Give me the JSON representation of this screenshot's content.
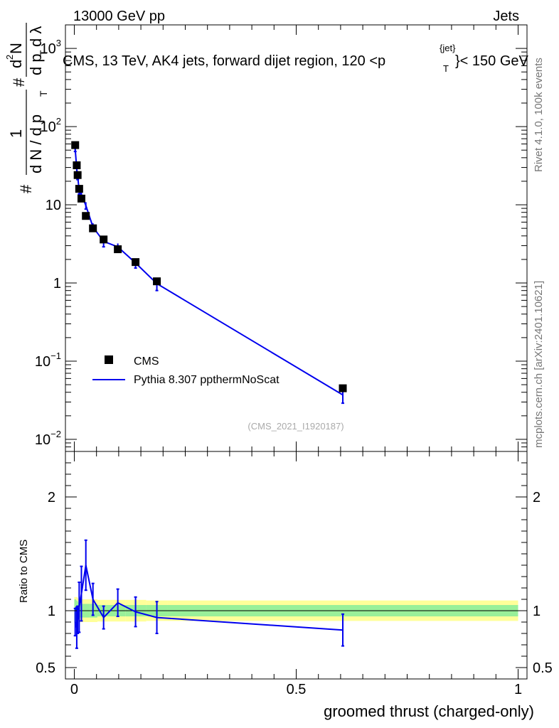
{
  "header": {
    "energy": "13000 GeV pp",
    "category": "Jets"
  },
  "side": {
    "rivet": "Rivet 4.1.0,  100k events",
    "mcplots": "mcplots.cern.ch [arXiv:2401.10621]"
  },
  "colors": {
    "pythia": "#0000ee",
    "band_inner": "#99f099",
    "band_outer": "#ffff99",
    "marker": "#000000"
  },
  "chart_data": [
    {
      "type": "scatter",
      "scale": "log",
      "title": "CMS, 13 TeV, AK4 jets, forward dijet region, 120 <p",
      "title_sup": "{jet}",
      "title_sub": "T",
      "title_end": "}< 150 GeV",
      "ylabel": "# 1/(dN/dp_T) # d²N/(dp_T dλ)",
      "ylabel_parts": {
        "hash": "#",
        "one": "1",
        "dN": "d N / d p",
        "T": "T",
        "d2N": "d",
        "two": "2",
        "N": "N",
        "dpT": "d p",
        "dlambda": "d λ"
      },
      "ylim": [
        0.007,
        2000
      ],
      "yticks": [
        {
          "v": 1000,
          "base": "10",
          "exp": "3"
        },
        {
          "v": 100,
          "base": "10",
          "exp": "2"
        },
        {
          "v": 10,
          "base": "10",
          "exp": ""
        },
        {
          "v": 1,
          "base": "1",
          "exp": ""
        },
        {
          "v": 0.1,
          "base": "10",
          "exp": "−1"
        },
        {
          "v": 0.01,
          "base": "10",
          "exp": "−2"
        }
      ],
      "legend": [
        "CMS",
        "Pythia 8.307 ppthermNoScat"
      ],
      "watermark": "(CMS_2021_I1920187)",
      "series": [
        {
          "name": "CMS",
          "x": [
            0.002,
            0.0055,
            0.0075,
            0.011,
            0.016,
            0.026,
            0.042,
            0.066,
            0.098,
            0.138,
            0.186,
            0.605
          ],
          "y": [
            58,
            32,
            24,
            16,
            12,
            7.2,
            5.0,
            3.6,
            2.7,
            1.85,
            1.05,
            0.045
          ],
          "yerr": [
            3,
            2,
            1.5,
            1.2,
            0.8,
            0.4,
            0.3,
            0.2,
            0.15,
            0.12,
            0.06,
            0.004
          ]
        },
        {
          "name": "Pythia 8.307 ppthermNoScat",
          "x": [
            0.002,
            0.0055,
            0.0075,
            0.011,
            0.016,
            0.026,
            0.042,
            0.066,
            0.098,
            0.138,
            0.186,
            0.605
          ],
          "y": [
            52,
            29,
            23,
            15.5,
            13.5,
            9.8,
            5.2,
            3.4,
            2.9,
            1.8,
            0.98,
            0.037
          ],
          "yerr": [
            4,
            3,
            2,
            1.8,
            1.4,
            1.0,
            0.6,
            0.5,
            0.3,
            0.25,
            0.18,
            0.008
          ]
        }
      ]
    },
    {
      "type": "line",
      "ylabel": "Ratio to CMS",
      "xlabel": "groomed thrust (charged-only)",
      "xlim": [
        -0.02,
        1.02
      ],
      "ylim": [
        0.4,
        2.4
      ],
      "xticks": [
        {
          "v": 0,
          "label": "0"
        },
        {
          "v": 0.5,
          "label": "0.5"
        },
        {
          "v": 1,
          "label": "1"
        }
      ],
      "yticks": [
        {
          "v": 0.5,
          "label": "0.5"
        },
        {
          "v": 1,
          "label": "1"
        },
        {
          "v": 2,
          "label": "2"
        }
      ],
      "bands": {
        "edges": [
          0,
          0.004,
          0.007,
          0.009,
          0.013,
          0.02,
          0.033,
          0.052,
          0.081,
          0.116,
          0.162,
          0.21,
          1.0
        ],
        "inner": [
          0.1,
          0.09,
          0.08,
          0.07,
          0.06,
          0.06,
          0.06,
          0.05,
          0.05,
          0.05,
          0.05,
          0.05
        ],
        "outer": [
          0.12,
          0.12,
          0.11,
          0.1,
          0.1,
          0.1,
          0.1,
          0.095,
          0.095,
          0.095,
          0.09,
          0.09
        ]
      },
      "series": [
        {
          "name": "Pythia 8.307 ppthermNoScat",
          "x": [
            0.002,
            0.0055,
            0.0075,
            0.011,
            0.016,
            0.026,
            0.042,
            0.066,
            0.098,
            0.138,
            0.186,
            0.605
          ],
          "y": [
            0.9,
            0.85,
            0.92,
            1.03,
            1.15,
            1.4,
            1.1,
            0.94,
            1.07,
            0.99,
            0.94,
            0.83
          ],
          "yerr": [
            0.12,
            0.18,
            0.12,
            0.22,
            0.24,
            0.22,
            0.14,
            0.1,
            0.12,
            0.13,
            0.14,
            0.14
          ]
        }
      ]
    }
  ]
}
